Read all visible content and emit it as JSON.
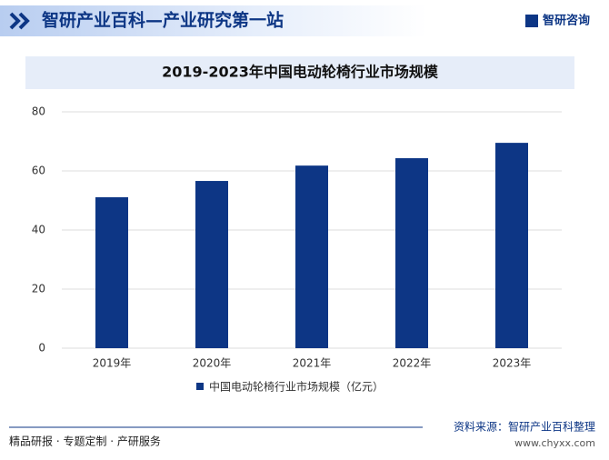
{
  "header": {
    "title": "智研产业百科—产业研究第一站",
    "logo": "智研咨询"
  },
  "chart_data": {
    "type": "bar",
    "title": "2019-2023年中国电动轮椅行业市场规模",
    "categories": [
      "2019年",
      "2020年",
      "2021年",
      "2022年",
      "2023年"
    ],
    "series": [
      {
        "name": "中国电动轮椅行业市场规模（亿元）",
        "color": "#0d3685",
        "values": [
          51.1,
          56.6,
          61.8,
          64.3,
          69.5
        ]
      }
    ],
    "ylim": [
      0,
      80
    ],
    "yticks": [
      0,
      20,
      40,
      60,
      80
    ],
    "grid": true,
    "legend": "bottom"
  },
  "footer": {
    "left": "精品研报 · 专题定制 · 产研服务",
    "source": "资料来源：智研产业百科整理",
    "url": "www.chyxx.com"
  }
}
